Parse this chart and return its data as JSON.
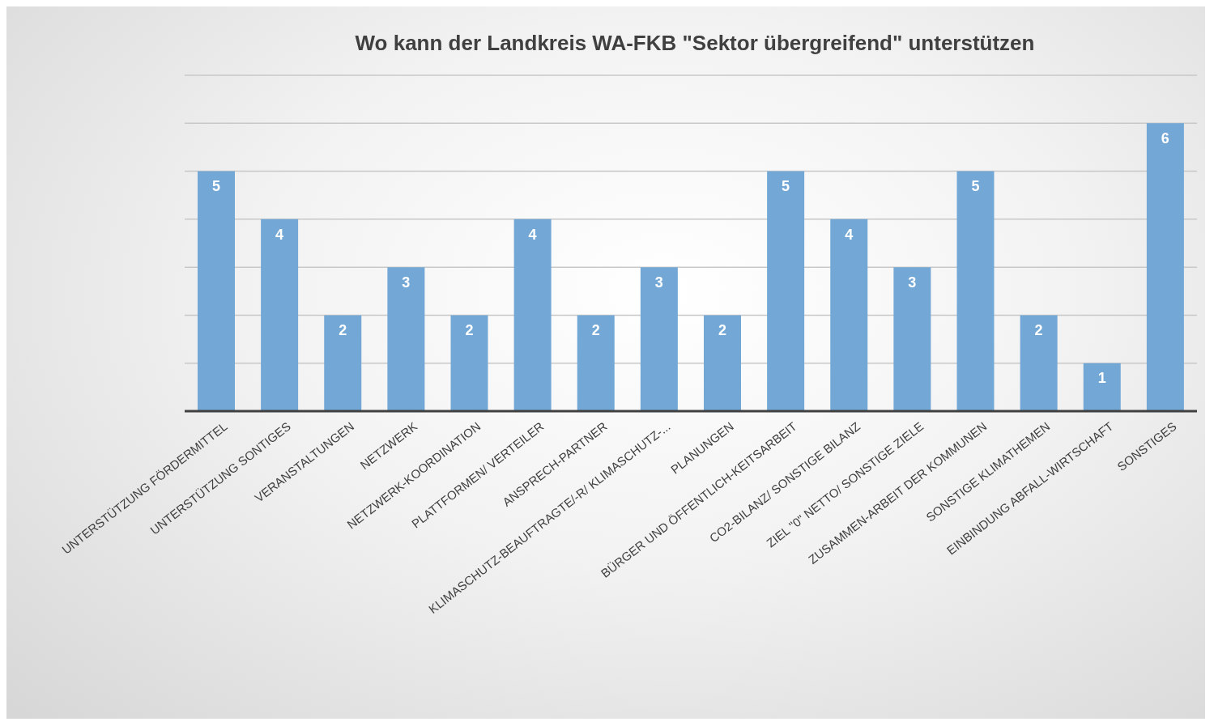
{
  "chart_data": {
    "type": "bar",
    "title": "Wo kann der Landkreis WA-FKB \"Sektor übergreifend\" unterstützen",
    "categories": [
      "UNTERSTÜTZUNG FÖRDERMITTEL",
      "UNTERSTÜTZUNG SONTIGES",
      "VERANSTALTUNGEN",
      "NETZWERK",
      "NETZWERK-KOORDINATION",
      "PLATTFORMEN/ VERTEILER",
      "ANSPRECH-PARTNER",
      "KLIMASCHUTZ-BEAUFTRAGTE/-R/ KLIMASCHUTZ-...",
      "PLANUNGEN",
      "BÜRGER UND ÖFFENTLICH-KEITSARBEIT",
      "CO2-BILANZ/ SONSTIGE BILANZ",
      "ZIEL \"0\" NETTO/ SONSTIGE ZIELE",
      "ZUSAMMEN-ARBEIT DER KOMMUNEN",
      "SONSTIGE KLIMATHEMEN",
      "EINBINDUNG ABFALL-WIRTSCHAFT",
      "SONSTIGES"
    ],
    "values": [
      5,
      4,
      2,
      3,
      2,
      4,
      2,
      3,
      2,
      5,
      4,
      3,
      5,
      2,
      1,
      6
    ],
    "color": "#72a7d6",
    "ylim": [
      0,
      7
    ],
    "yticks": [
      {
        "value": 0,
        "label": null
      },
      {
        "value": 1,
        "label": null
      },
      {
        "value": 2,
        "label": null
      },
      {
        "value": 3,
        "label": null
      },
      {
        "value": 4,
        "label": null
      },
      {
        "value": 5,
        "label": null
      },
      {
        "value": 6,
        "label": null
      },
      {
        "value": 7,
        "label": null
      }
    ],
    "grid": "y",
    "data_labels": true,
    "tick_labels": "x"
  }
}
